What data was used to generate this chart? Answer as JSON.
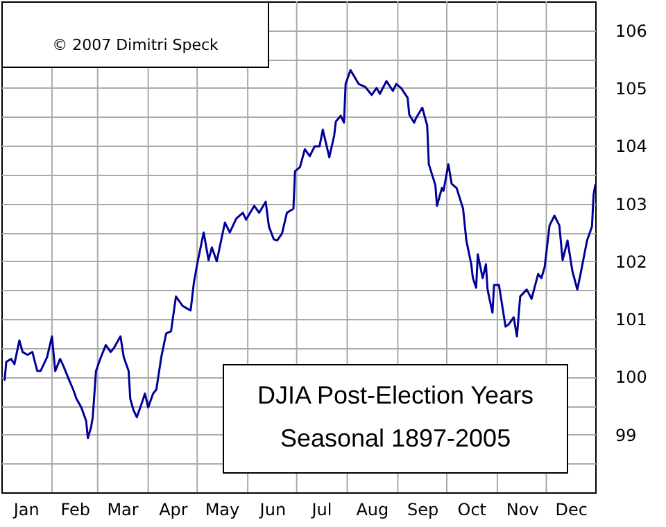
{
  "chart_data": {
    "type": "line",
    "title": "DJIA Post-Election Years",
    "subtitle": "Seasonal 1897-2005",
    "annotations": [
      "© 2007  Dimitri Speck"
    ],
    "x": [
      "--01-03",
      "--01-04",
      "--01-07",
      "--01-09",
      "--01-12",
      "--01-14",
      "--01-17",
      "--01-20",
      "--01-23",
      "--01-25",
      "--01-29",
      "--02-01",
      "--02-03",
      "--02-06",
      "--02-08",
      "--02-11",
      "--02-14",
      "--02-16",
      "--02-19",
      "--02-22",
      "--02-23",
      "--02-25",
      "--02-26",
      "--02-28",
      "--03-03",
      "--03-06",
      "--03-09",
      "--03-11",
      "--03-15",
      "--03-17",
      "--03-20",
      "--03-21",
      "--03-23",
      "--03-25",
      "--03-28",
      "--03-30",
      "--04-01",
      "--04-04",
      "--04-06",
      "--04-09",
      "--04-12",
      "--04-15",
      "--04-18",
      "--04-22",
      "--04-25",
      "--04-27",
      "--04-29",
      "--05-01",
      "--05-05",
      "--05-08",
      "--05-10",
      "--05-13",
      "--05-18",
      "--05-21",
      "--05-25",
      "--05-29",
      "--05-31",
      "--06-05",
      "--06-08",
      "--06-12",
      "--06-14",
      "--06-17",
      "--06-19",
      "--06-22",
      "--06-25",
      "--06-29",
      "--06-30",
      "--07-03",
      "--07-06",
      "--07-09",
      "--07-12",
      "--07-15",
      "--07-17",
      "--07-21",
      "--07-24",
      "--07-25",
      "--07-28",
      "--07-30",
      "--07-31",
      "--08-03",
      "--08-08",
      "--08-12",
      "--08-16",
      "--08-19",
      "--08-21",
      "--08-25",
      "--08-29",
      "--08-31",
      "--09-03",
      "--09-07",
      "--09-08",
      "--09-11",
      "--09-12",
      "--09-16",
      "--09-19",
      "--09-20",
      "--09-24",
      "--09-25",
      "--09-28",
      "--09-29",
      "--10-02",
      "--10-04",
      "--10-07",
      "--10-11",
      "--10-13",
      "--10-16",
      "--10-17",
      "--10-19",
      "--10-20",
      "--10-23",
      "--10-25",
      "--10-26",
      "--10-29",
      "--10-30",
      "--11-02",
      "--11-06",
      "--11-08",
      "--11-11",
      "--11-13",
      "--11-15",
      "--11-19",
      "--11-22",
      "--11-26",
      "--11-28",
      "--11-30",
      "--12-03",
      "--12-06",
      "--12-09",
      "--12-11",
      "--12-14",
      "--12-17",
      "--12-20",
      "--12-22",
      "--12-26",
      "--12-29",
      "--12-30",
      "--12-31"
    ],
    "series": [
      {
        "color": "#000099",
        "values": [
          99.95,
          100.26,
          100.31,
          100.22,
          100.63,
          100.43,
          100.38,
          100.43,
          100.1,
          100.1,
          100.34,
          100.7,
          100.1,
          100.31,
          100.19,
          99.98,
          99.78,
          99.62,
          99.47,
          99.23,
          98.94,
          99.13,
          99.3,
          100.1,
          100.34,
          100.55,
          100.43,
          100.5,
          100.7,
          100.34,
          100.1,
          99.62,
          99.42,
          99.3,
          99.54,
          99.71,
          99.47,
          99.71,
          99.78,
          100.34,
          100.75,
          100.79,
          101.39,
          101.23,
          101.18,
          101.15,
          101.63,
          101.95,
          102.5,
          102.02,
          102.24,
          102.0,
          102.67,
          102.5,
          102.74,
          102.84,
          102.72,
          102.96,
          102.84,
          103.03,
          102.6,
          102.38,
          102.36,
          102.48,
          102.84,
          102.91,
          103.56,
          103.63,
          103.94,
          103.82,
          103.99,
          103.99,
          104.28,
          103.8,
          104.18,
          104.42,
          104.52,
          104.4,
          105.07,
          105.31,
          105.07,
          105.02,
          104.88,
          105.0,
          104.9,
          105.12,
          104.95,
          105.07,
          105.0,
          104.83,
          104.54,
          104.4,
          104.47,
          104.66,
          104.35,
          103.68,
          103.32,
          102.96,
          103.27,
          103.22,
          103.68,
          103.34,
          103.27,
          102.91,
          102.36,
          101.95,
          101.71,
          101.54,
          102.12,
          101.71,
          101.95,
          101.51,
          101.11,
          101.59,
          101.59,
          100.87,
          100.91,
          101.03,
          100.7,
          101.39,
          101.51,
          101.35,
          101.78,
          101.71,
          101.9,
          102.62,
          102.79,
          102.62,
          102.02,
          102.36,
          101.83,
          101.51,
          101.78,
          102.36,
          102.6,
          103.15,
          103.32
        ]
      }
    ],
    "xlim": [
      "--01-01",
      "--12-31"
    ],
    "xticks": [
      {
        "value": "--01-16",
        "label": "Jan"
      },
      {
        "value": "--02-01",
        "label": null
      },
      {
        "value": "--02-15",
        "label": "Feb"
      },
      {
        "value": "--03-01",
        "label": null
      },
      {
        "value": "--03-16",
        "label": "Mar"
      },
      {
        "value": "--04-01",
        "label": null
      },
      {
        "value": "--04-16",
        "label": "Apr"
      },
      {
        "value": "--05-01",
        "label": null
      },
      {
        "value": "--05-16",
        "label": "May"
      },
      {
        "value": "--06-01",
        "label": null
      },
      {
        "value": "--06-16",
        "label": "Jun"
      },
      {
        "value": "--07-01",
        "label": null
      },
      {
        "value": "--07-16",
        "label": "Jul"
      },
      {
        "value": "--08-01",
        "label": null
      },
      {
        "value": "--08-16",
        "label": "Aug"
      },
      {
        "value": "--09-01",
        "label": null
      },
      {
        "value": "--09-16",
        "label": "Sep"
      },
      {
        "value": "--10-01",
        "label": null
      },
      {
        "value": "--10-16",
        "label": "Oct"
      },
      {
        "value": "--11-01",
        "label": null
      },
      {
        "value": "--11-16",
        "label": "Nov"
      },
      {
        "value": "--12-01",
        "label": null
      },
      {
        "value": "--12-16",
        "label": "Dec"
      }
    ],
    "ylim": [
      98,
      106.5
    ],
    "yticks": [
      {
        "value": 98.5,
        "label": null
      },
      99,
      {
        "value": 99.5,
        "label": null
      },
      100,
      {
        "value": 100.5,
        "label": null
      },
      101,
      {
        "value": 101.5,
        "label": null
      },
      102,
      {
        "value": 102.5,
        "label": null
      },
      103,
      {
        "value": 103.5,
        "label": null
      },
      104,
      {
        "value": 104.5,
        "label": null
      },
      105,
      {
        "value": 105.5,
        "label": null
      },
      106
    ],
    "grid": true,
    "marker": "none",
    "line_style": "solid"
  }
}
